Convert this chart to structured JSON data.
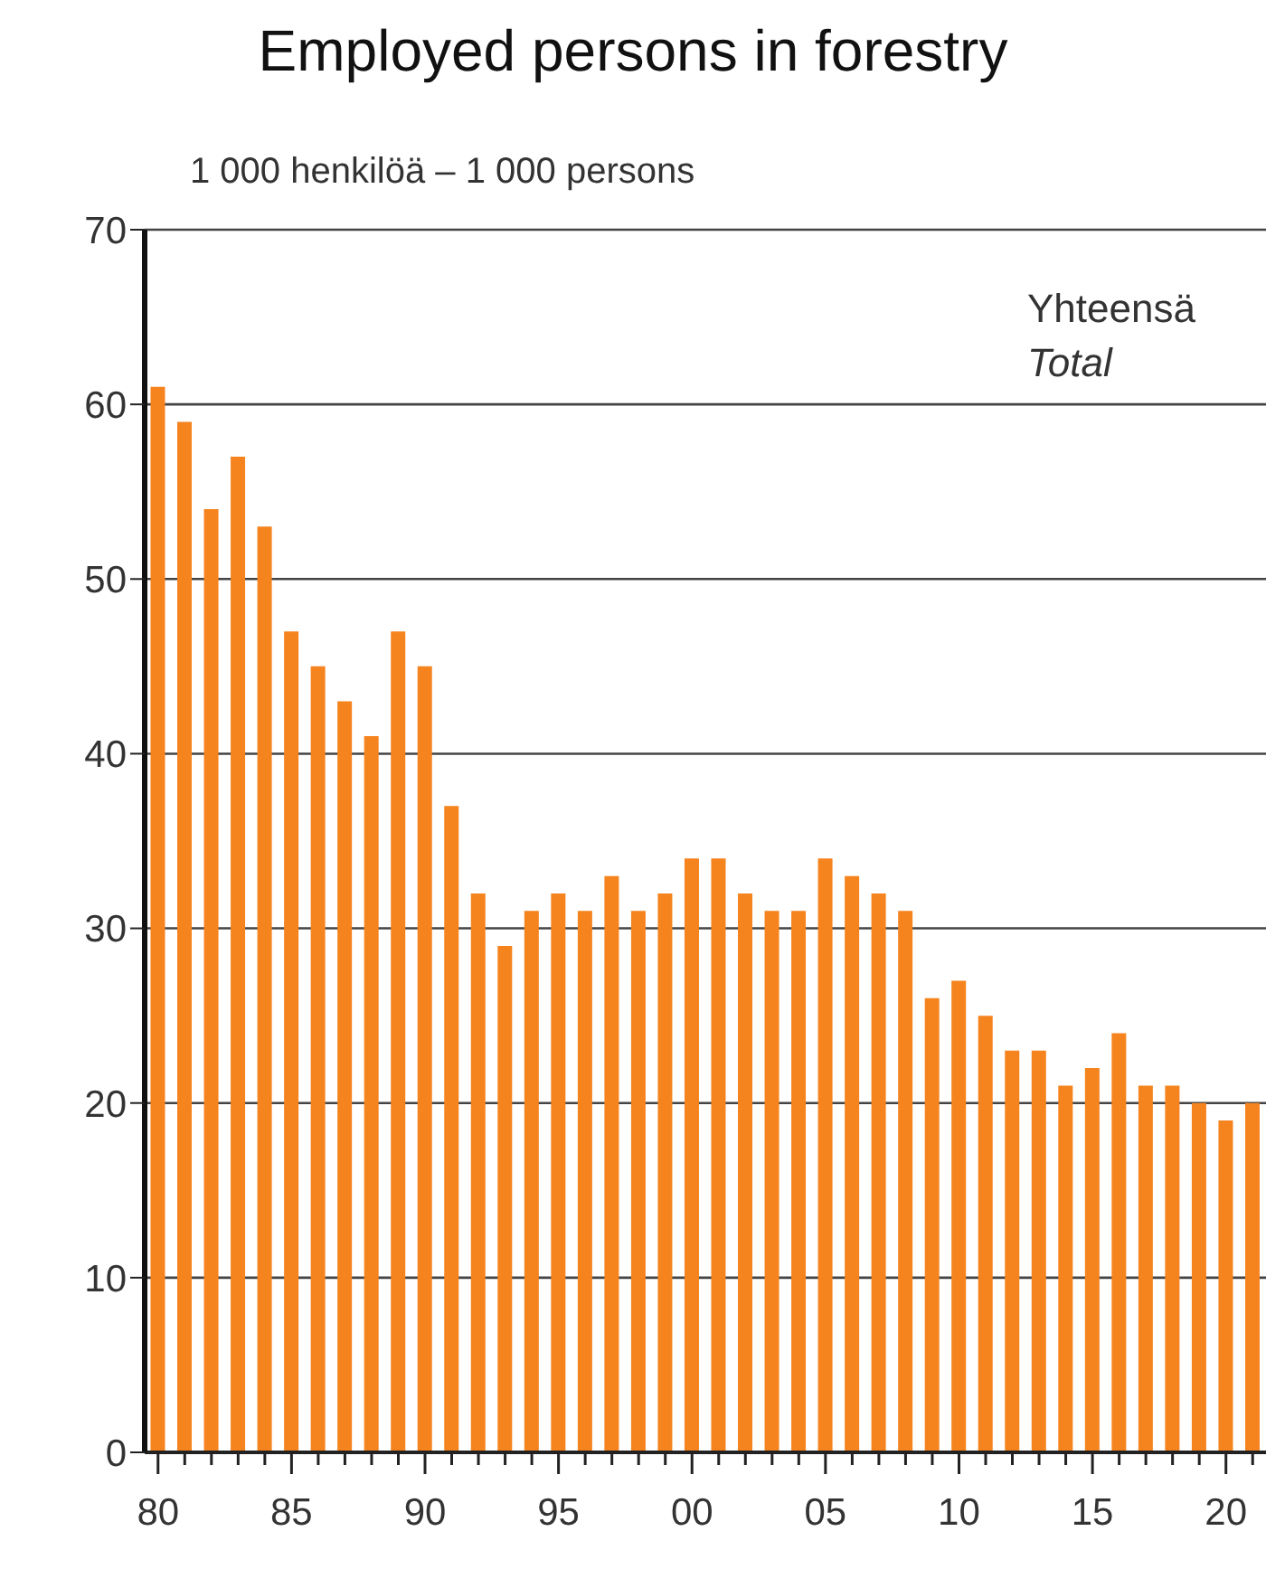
{
  "chart_data": {
    "type": "bar",
    "title": "Employed persons in forestry",
    "ylabel": "1 000 henkilöä – 1 000 persons",
    "annotations": [
      "Yhteensä",
      "Total"
    ],
    "categories": [
      "80",
      null,
      null,
      null,
      null,
      "85",
      null,
      null,
      null,
      null,
      "90",
      null,
      null,
      null,
      null,
      "95",
      null,
      null,
      null,
      null,
      "00",
      null,
      null,
      null,
      null,
      "05",
      null,
      null,
      null,
      null,
      "10",
      null,
      null,
      null,
      null,
      "15",
      null,
      null,
      null,
      null,
      "20",
      null
    ],
    "values": [
      61,
      59,
      54,
      57,
      53,
      47,
      45,
      43,
      41,
      47,
      45,
      37,
      32,
      29,
      31,
      32,
      31,
      33,
      31,
      32,
      34,
      34,
      32,
      31,
      31,
      34,
      33,
      32,
      31,
      26,
      27,
      25,
      23,
      23,
      21,
      22,
      24,
      21,
      21,
      20,
      19,
      20
    ],
    "color": "#f5841f",
    "ylim": [
      0,
      70
    ],
    "yticks": [
      0,
      10,
      20,
      30,
      40,
      50,
      60,
      70
    ],
    "grid": "y"
  }
}
